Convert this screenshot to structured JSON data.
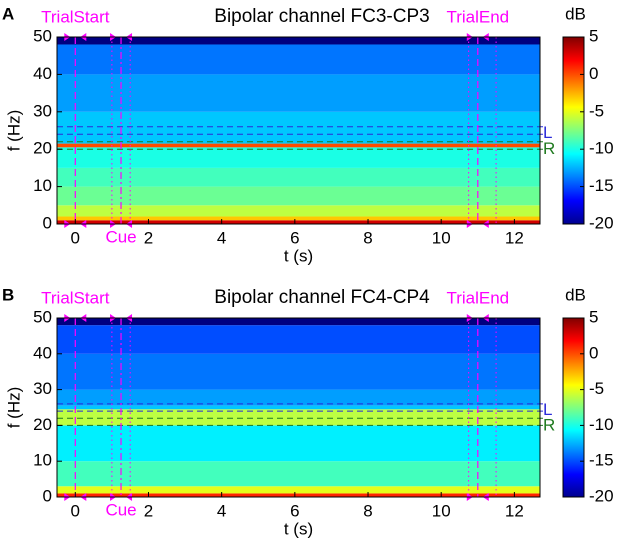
{
  "chart_data": [
    {
      "type": "heatmap",
      "panel_label": "A",
      "title": "Bipolar channel FC3-CP3",
      "xlabel": "t (s)",
      "ylabel": "f (Hz)",
      "xlim": [
        -0.5,
        12.7
      ],
      "ylim": [
        0,
        50
      ],
      "xticks": [
        0,
        2,
        4,
        6,
        8,
        10,
        12
      ],
      "yticks": [
        0,
        10,
        20,
        30,
        40,
        50
      ],
      "f_bins": [
        0,
        1,
        2,
        5,
        10,
        15,
        20.5,
        21.5,
        30,
        40,
        48,
        50
      ],
      "values": [
        3,
        -3,
        -6,
        -8,
        -9,
        -10,
        0,
        -12,
        -13,
        -14,
        -20
      ],
      "colormap": "jet",
      "clim": [
        -20,
        5
      ],
      "cticks": [
        5,
        0,
        -5,
        -10,
        -15,
        -20
      ],
      "clabel": "dB",
      "event_color": "#ff00ff",
      "events": [
        {
          "label": "TrialStart",
          "x": 0,
          "style": "dashed",
          "place": "top"
        },
        {
          "label": "Cue",
          "x": 1.25,
          "style": "dashdot",
          "place": "bottom"
        },
        {
          "label": "TrialEnd",
          "x": 11,
          "style": "dashed",
          "place": "top"
        }
      ],
      "dotted_x": [
        1,
        1.5,
        10.75,
        11.5
      ],
      "bands": [
        {
          "label": "L",
          "range": [
            24,
            26
          ],
          "color": "#2b2bd9"
        },
        {
          "label": "R",
          "range": [
            20,
            22
          ],
          "color": "#1f7a1f"
        }
      ]
    },
    {
      "type": "heatmap",
      "panel_label": "B",
      "title": "Bipolar channel FC4-CP4",
      "xlabel": "t (s)",
      "ylabel": "f (Hz)",
      "xlim": [
        -0.5,
        12.7
      ],
      "ylim": [
        0,
        50
      ],
      "xticks": [
        0,
        2,
        4,
        6,
        8,
        10,
        12
      ],
      "yticks": [
        0,
        10,
        20,
        30,
        40,
        50
      ],
      "f_bins": [
        0,
        1,
        3,
        10,
        20,
        24.5,
        25.5,
        30,
        40,
        48,
        50
      ],
      "values": [
        1,
        -5,
        -9,
        -11,
        -6,
        -12,
        -13,
        -14,
        -15,
        -20
      ],
      "colormap": "jet",
      "clim": [
        -20,
        5
      ],
      "cticks": [
        5,
        0,
        -5,
        -10,
        -15,
        -20
      ],
      "clabel": "dB",
      "event_color": "#ff00ff",
      "events": [
        {
          "label": "TrialStart",
          "x": 0,
          "style": "dashed",
          "place": "top"
        },
        {
          "label": "Cue",
          "x": 1.25,
          "style": "dashdot",
          "place": "bottom"
        },
        {
          "label": "TrialEnd",
          "x": 11,
          "style": "dashed",
          "place": "top"
        }
      ],
      "dotted_x": [
        1,
        1.5,
        10.75,
        11.5
      ],
      "bands": [
        {
          "label": "L",
          "range": [
            24,
            26
          ],
          "color": "#2b2bd9"
        },
        {
          "label": "R",
          "range": [
            20,
            22
          ],
          "color": "#1f7a1f"
        }
      ]
    }
  ]
}
